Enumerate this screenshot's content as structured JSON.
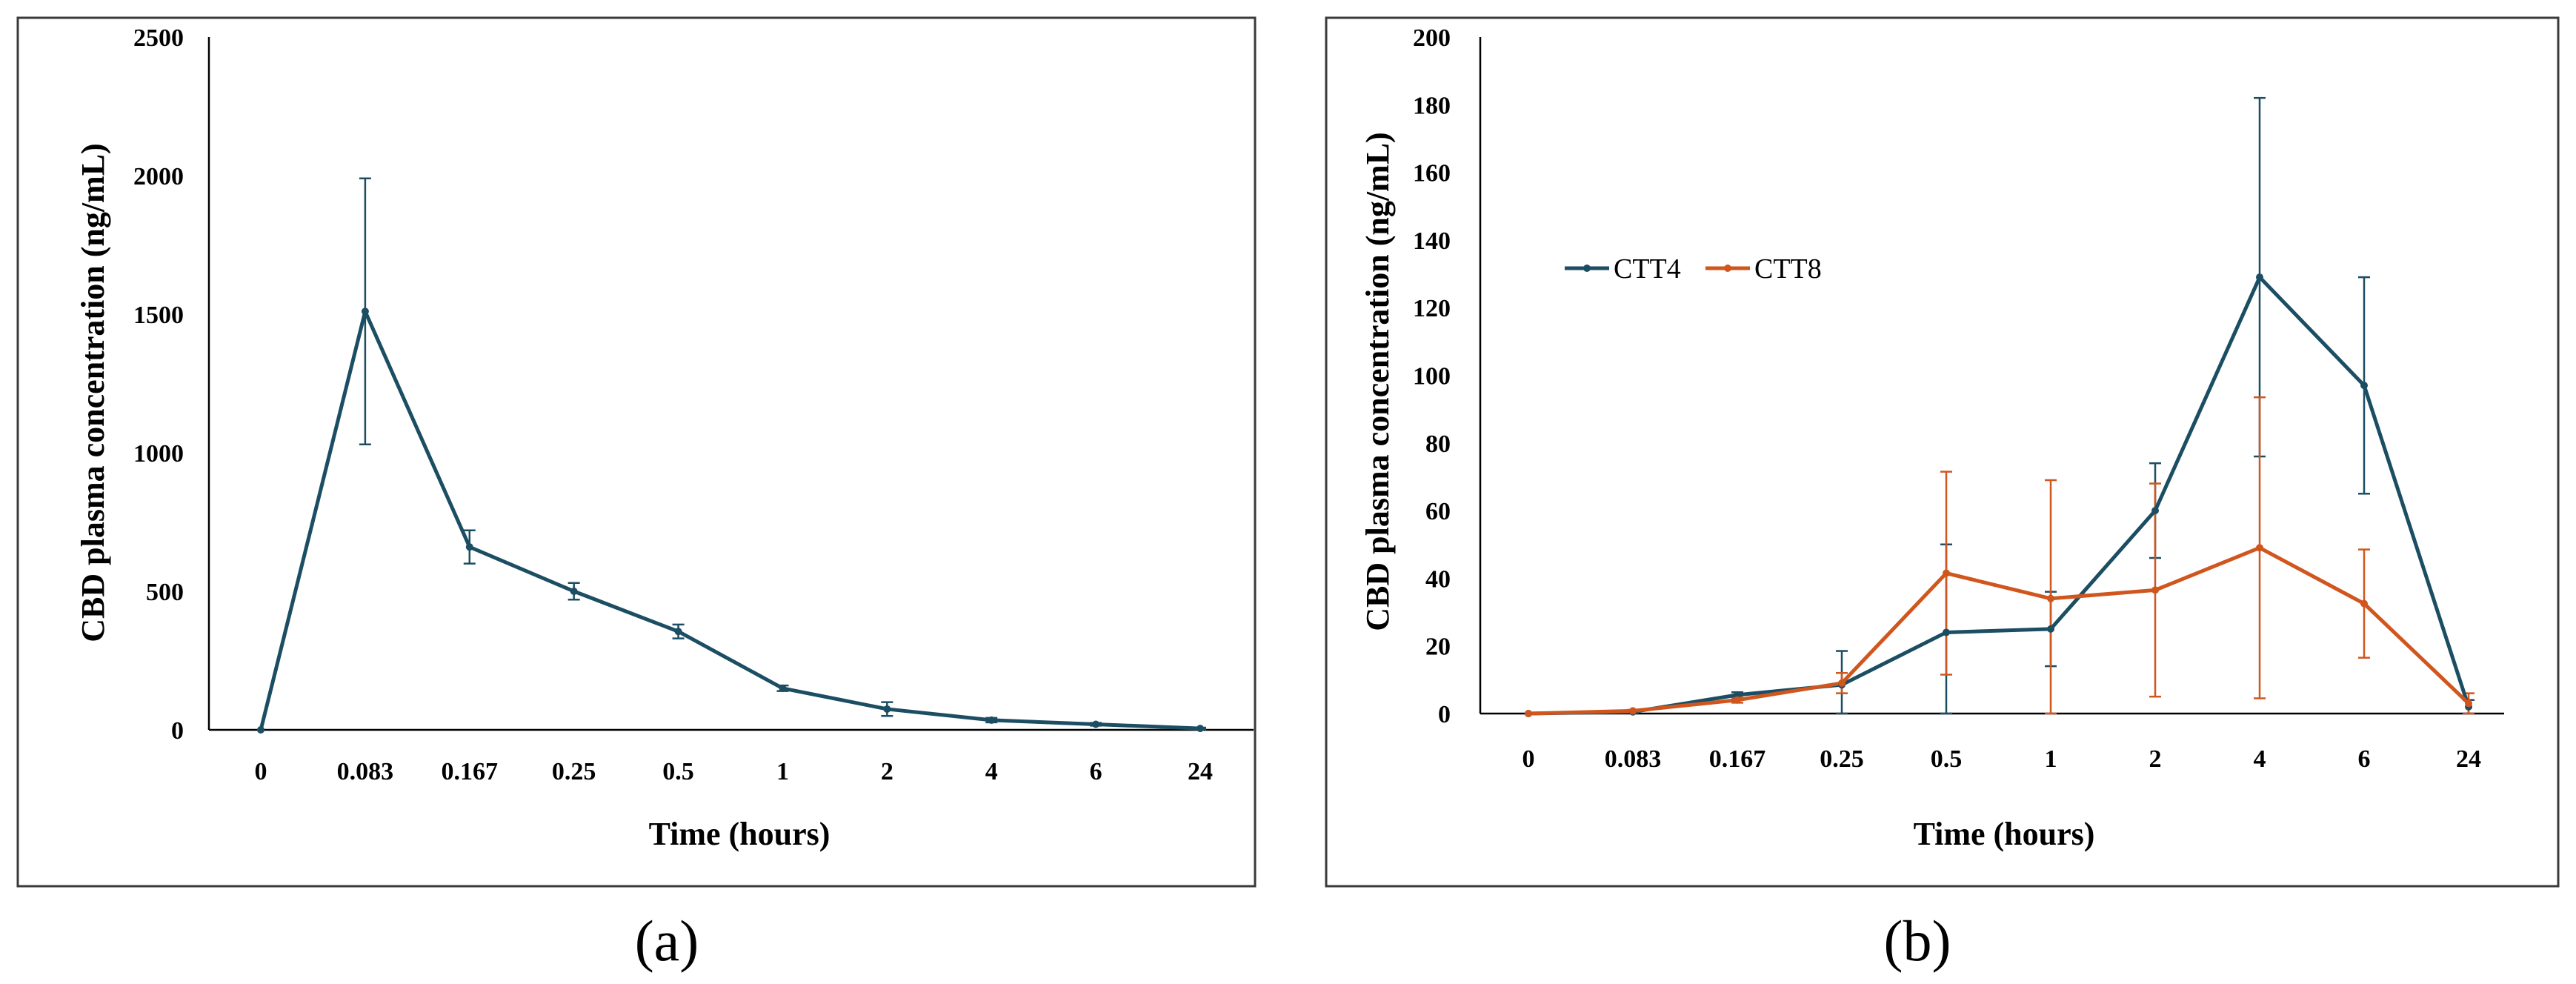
{
  "chart_data": [
    {
      "type": "line",
      "panel_label": "(a)",
      "xlabel": "Time (hours)",
      "ylabel": "CBD plasma concentration (ng/mL)",
      "categories": [
        "0",
        "0.083",
        "0.167",
        "0.25",
        "0.5",
        "1",
        "2",
        "4",
        "6",
        "24"
      ],
      "ylim": [
        0,
        2500
      ],
      "yticks": [
        "0",
        "500",
        "1000",
        "1500",
        "2000",
        "2500"
      ],
      "grid": false,
      "series": [
        {
          "color": "#1c4e63",
          "values": [
            0,
            1510,
            660,
            500,
            355,
            150,
            75,
            35,
            20,
            5
          ],
          "errors": [
            0,
            480,
            60,
            30,
            25,
            10,
            25,
            8,
            5,
            3
          ]
        }
      ]
    },
    {
      "type": "line",
      "panel_label": "(b)",
      "xlabel": "Time (hours)",
      "ylabel": "CBD plasma concentration (ng/mL)",
      "categories": [
        "0",
        "0.083",
        "0.167",
        "0.25",
        "0.5",
        "1",
        "2",
        "4",
        "6",
        "24"
      ],
      "ylim": [
        0,
        200
      ],
      "yticks": [
        "0",
        "20",
        "40",
        "60",
        "80",
        "100",
        "120",
        "140",
        "160",
        "180",
        "200"
      ],
      "grid": false,
      "legend_position": "upper-left",
      "series": [
        {
          "name": "CTT4",
          "color": "#1c4e63",
          "values": [
            0,
            0.5,
            5.5,
            8.5,
            24,
            25,
            60,
            129,
            97,
            2
          ],
          "errors": [
            0,
            0.3,
            0.8,
            10,
            26,
            11,
            14,
            53,
            32,
            2
          ]
        },
        {
          "name": "CTT8",
          "color": "#d0561e",
          "values": [
            0,
            0.8,
            4,
            9,
            41.5,
            34,
            36.5,
            49,
            32.5,
            3
          ],
          "errors": [
            0,
            0.3,
            0.8,
            3,
            30,
            35,
            31.5,
            44.5,
            16,
            3
          ]
        }
      ]
    }
  ]
}
